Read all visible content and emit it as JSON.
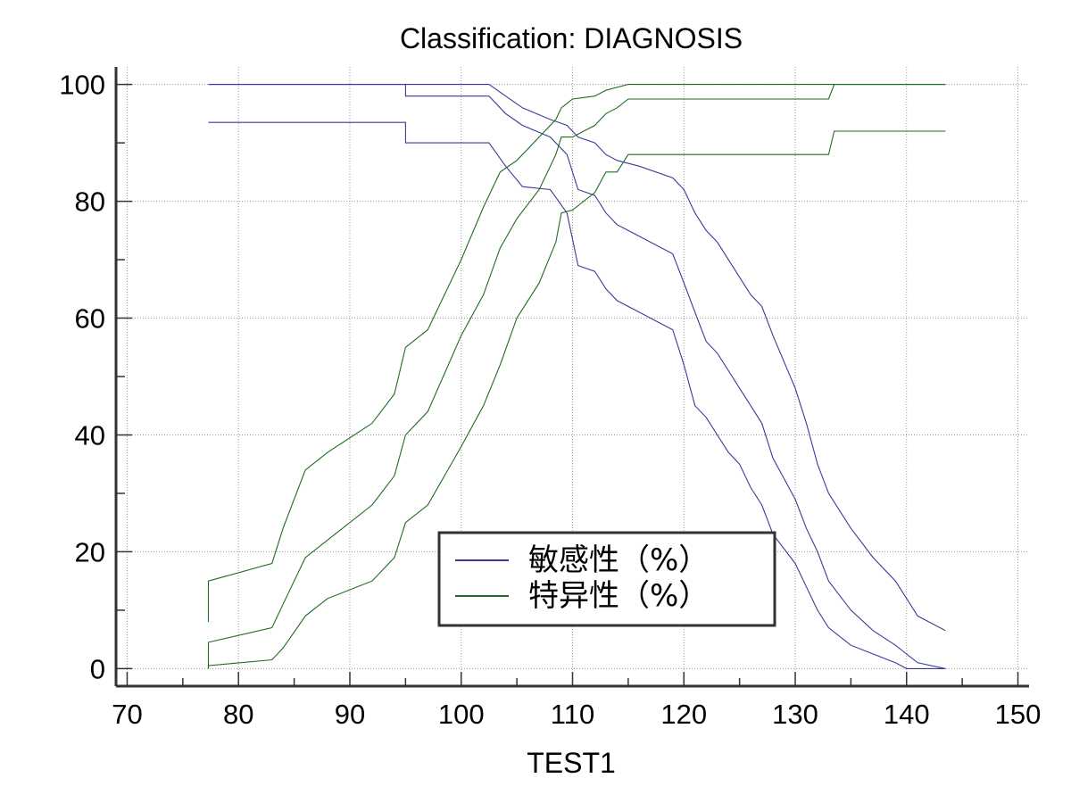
{
  "chart_data": {
    "type": "line",
    "title": "Classification: DIAGNOSIS",
    "xlabel": "TEST1",
    "ylabel": "",
    "xlim": [
      69,
      151
    ],
    "ylim": [
      -3,
      103
    ],
    "xticks": [
      70,
      80,
      90,
      100,
      110,
      120,
      130,
      140,
      150
    ],
    "yticks": [
      0,
      20,
      40,
      60,
      80,
      100
    ],
    "grid": true,
    "legend_position": "bottom-center",
    "colors": {
      "sensitivity": "#3a3a9a",
      "specificity": "#1f6b1f"
    },
    "series": [
      {
        "name": "敏感性（%）",
        "role": "sensitivity",
        "bands": [
          {
            "x": [
              77.3,
              95,
              95,
              102.5,
              104,
              105.5,
              108,
              109.5,
              110.5,
              112,
              113,
              114,
              116,
              119,
              120,
              121,
              122,
              123,
              124,
              125,
              126,
              127,
              128,
              130,
              131,
              132,
              133,
              135,
              137,
              139,
              140,
              141,
              143.5
            ],
            "y": [
              100,
              100,
              100,
              100,
              98,
              96,
              94,
              93,
              91,
              90,
              88,
              87,
              86,
              84,
              82,
              78,
              75,
              73,
              70,
              67,
              64,
              62,
              57,
              48,
              42,
              35,
              30,
              24,
              19,
              15,
              12,
              9,
              6.5
            ]
          },
          {
            "x": [
              77.3,
              95,
              95,
              102.5,
              104,
              105.5,
              108,
              109.5,
              110.5,
              112,
              113,
              114,
              116,
              119,
              120,
              121,
              122,
              123,
              124,
              125,
              126,
              127,
              128,
              130,
              131,
              132,
              133,
              135,
              137,
              139,
              140,
              141,
              143.5
            ],
            "y": [
              100,
              100,
              98,
              98,
              95,
              93,
              91,
              88,
              82,
              81,
              78,
              76,
              74,
              71,
              66,
              61,
              56,
              54,
              51,
              48,
              45,
              42,
              36,
              29,
              24,
              20,
              15,
              10,
              6.5,
              4,
              2.5,
              1,
              0
            ]
          },
          {
            "x": [
              77.3,
              95,
              95,
              102.5,
              104,
              105.5,
              108,
              109.5,
              110.5,
              112,
              113,
              114,
              116,
              119,
              120,
              121,
              122,
              123,
              124,
              125,
              126,
              127,
              128,
              130,
              131,
              132,
              133,
              135,
              137,
              139,
              140,
              141,
              143.5
            ],
            "y": [
              93.5,
              93.5,
              90,
              90,
              86,
              82.5,
              82,
              78,
              69,
              68,
              65,
              63,
              61,
              58,
              52,
              45,
              43,
              40,
              37,
              35,
              31,
              28,
              23,
              18,
              14,
              10,
              7,
              4,
              2.5,
              1,
              0,
              0,
              0
            ]
          }
        ]
      },
      {
        "name": "特异性（%）",
        "role": "specificity",
        "bands": [
          {
            "x": [
              77.3,
              77.3,
              83,
              84,
              86,
              88,
              92,
              94,
              95,
              97,
              100,
              102,
              103.5,
              105,
              107,
              108.5,
              109,
              110,
              112,
              113,
              114,
              115,
              120,
              130,
              133,
              133.5,
              143.5
            ],
            "y": [
              8,
              15,
              18,
              24,
              34,
              37,
              42,
              47,
              55,
              58,
              70,
              79,
              85,
              87,
              91,
              94,
              96,
              97.5,
              98,
              99,
              99.5,
              100,
              100,
              100,
              100,
              100,
              100
            ]
          },
          {
            "x": [
              77.3,
              77.3,
              83,
              84,
              86,
              88,
              92,
              94,
              95,
              97,
              100,
              102,
              103.5,
              105,
              107,
              108.5,
              109,
              110,
              112,
              113,
              114,
              115,
              120,
              130,
              133,
              133.5,
              143.5
            ],
            "y": [
              0,
              4.5,
              7,
              11,
              19,
              22,
              28,
              33,
              40,
              44,
              57,
              64,
              72,
              77,
              82,
              88,
              91,
              91,
              93,
              95,
              96,
              97.5,
              97.5,
              97.5,
              97.5,
              100,
              100
            ]
          },
          {
            "x": [
              77.3,
              77.3,
              83,
              84,
              86,
              88,
              92,
              94,
              95,
              97,
              100,
              102,
              103.5,
              105,
              107,
              108.5,
              109,
              110,
              112,
              113,
              114,
              115,
              120,
              130,
              133,
              133.5,
              143.5
            ],
            "y": [
              0,
              0.5,
              1.5,
              3.5,
              9,
              12,
              15,
              19,
              25,
              28,
              38,
              45,
              52,
              60,
              66,
              73,
              78,
              78.5,
              81.5,
              85,
              85,
              88,
              88,
              88,
              88,
              92,
              92
            ]
          }
        ]
      }
    ]
  }
}
